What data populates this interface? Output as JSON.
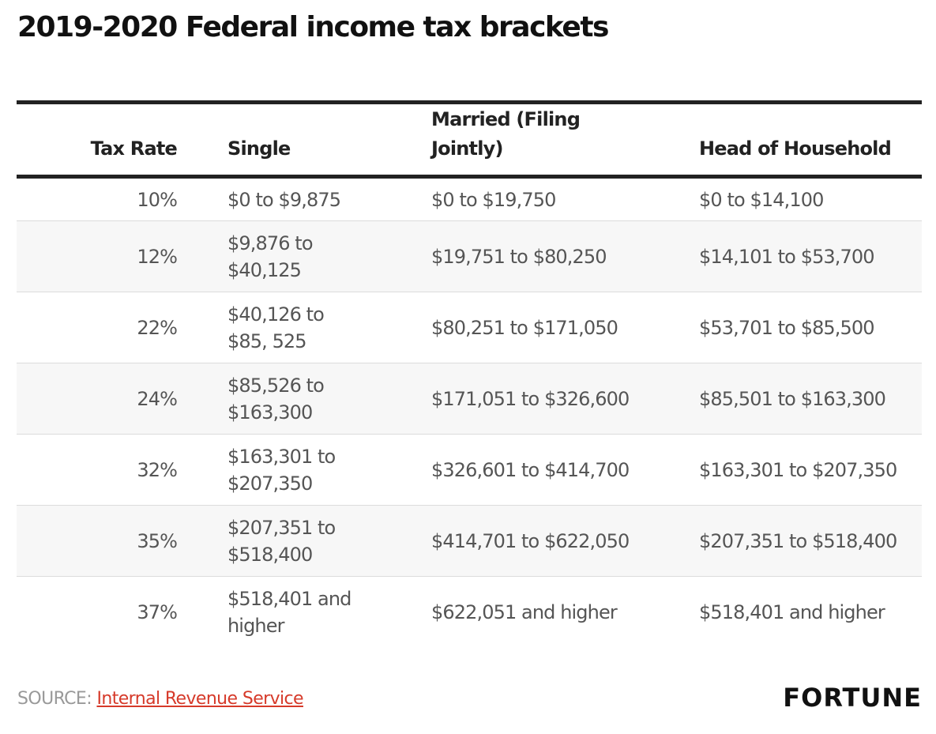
{
  "title": "2019-2020 Federal income tax brackets",
  "chart_data": {
    "type": "table",
    "columns": [
      "Tax Rate",
      "Single",
      "Married (Filing Jointly)",
      "Head of Household"
    ],
    "rows": [
      [
        "10%",
        "$0 to $9,875",
        "$0 to $19,750",
        "$0 to $14,100"
      ],
      [
        "12%",
        "$9,876 to $40,125",
        "$19,751 to $80,250",
        "$14,101 to $53,700"
      ],
      [
        "22%",
        "$40,126 to $85, 525",
        "$80,251 to $171,050",
        "$53,701 to $85,500"
      ],
      [
        "24%",
        "$85,526 to $163,300",
        "$171,051 to $326,600",
        "$85,501 to $163,300"
      ],
      [
        "32%",
        "$163,301 to $207,350",
        "$326,601 to $414,700",
        "$163,301 to $207,350"
      ],
      [
        "35%",
        "$207,351 to $518,400",
        "$414,701 to $622,050",
        "$207,351 to $518,400"
      ],
      [
        "37%",
        "$518,401 and higher",
        "$622,051 and higher",
        "$518,401 and higher"
      ]
    ]
  },
  "footer": {
    "source_label": "SOURCE:",
    "source_link": "Internal Revenue Service",
    "logo": "FORTUNE"
  },
  "colors": {
    "link": "#d63a2a",
    "rule": "#222222",
    "alt_row": "#f7f7f7"
  }
}
